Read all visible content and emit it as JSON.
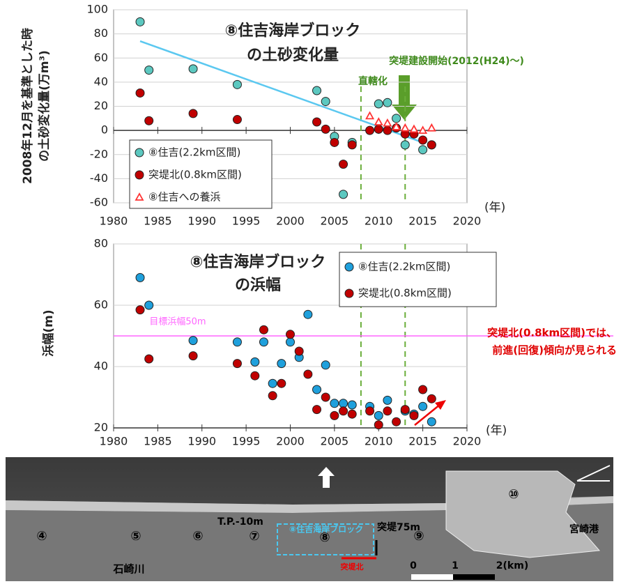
{
  "chart_data": [
    {
      "type": "scatter",
      "title": [
        "⑧住吉海岸ブロック",
        "の土砂変化量"
      ],
      "y_label": [
        "2008年12月を基準とした時",
        "の土砂変化量(万m³)"
      ],
      "x_unit": "(年)",
      "xlim": [
        1980,
        2020
      ],
      "xticks": [
        1980,
        1985,
        1990,
        1995,
        2000,
        2005,
        2010,
        2015,
        2020
      ],
      "ylim": [
        -60,
        100
      ],
      "yticks": [
        -60,
        -40,
        -20,
        0,
        20,
        40,
        60,
        80,
        100
      ],
      "grid": true,
      "legend": "lower-left",
      "series": [
        {
          "name": "⑧住吉(2.2km区間)",
          "color": "#5cc8c0",
          "marker": "circle",
          "x": [
            1983,
            1984,
            1989,
            1994,
            2003,
            2004,
            2005,
            2006,
            2007,
            2010,
            2011,
            2012,
            2013,
            2015,
            2016
          ],
          "values": [
            90,
            50,
            51,
            38,
            33,
            24,
            -5,
            -53,
            -10,
            22,
            23,
            10,
            -12,
            -16,
            -12
          ]
        },
        {
          "name": "突堤北(0.8km区間)",
          "color": "#c00000",
          "marker": "circle",
          "x": [
            1983,
            1984,
            1989,
            1994,
            2003,
            2004,
            2005,
            2006,
            2007,
            2009,
            2010,
            2011,
            2012,
            2013,
            2014,
            2015,
            2016
          ],
          "values": [
            31,
            8,
            14,
            9,
            7,
            1,
            -10,
            -28,
            -12,
            0,
            1,
            0,
            2,
            -3,
            -3,
            -8,
            -12
          ]
        },
        {
          "name": "⑧住吉への養浜",
          "color": "#ff3333",
          "marker": "triangle",
          "x": [
            2009,
            2010,
            2011,
            2012,
            2013,
            2014,
            2015,
            2016
          ],
          "values": [
            12,
            7,
            6,
            3,
            2,
            1,
            0,
            2
          ]
        }
      ],
      "trend": {
        "x": [
          1983,
          2015
        ],
        "values": [
          74,
          -10
        ],
        "color": "#5bc8f0"
      },
      "vlines": [
        {
          "x": 2008,
          "label": "直轄化"
        },
        {
          "x": 2013,
          "label": "突堤建設開始(2012(H24)〜)"
        }
      ]
    },
    {
      "type": "scatter",
      "title": [
        "⑧住吉海岸ブロック",
        "の浜幅"
      ],
      "y_label": [
        "浜幅(m)"
      ],
      "x_unit": "(年)",
      "xlim": [
        1980,
        2020
      ],
      "xticks": [
        1980,
        1985,
        1990,
        1995,
        2000,
        2005,
        2010,
        2015,
        2020
      ],
      "ylim": [
        20,
        80
      ],
      "yticks": [
        20,
        40,
        60,
        80
      ],
      "grid": true,
      "legend": "upper-right",
      "series": [
        {
          "name": "⑧住吉(2.2km区間)",
          "color": "#1fa0dc",
          "marker": "circle",
          "x": [
            1983,
            1984,
            1989,
            1994,
            1996,
            1997,
            1998,
            1999,
            2000,
            2001,
            2002,
            2003,
            2004,
            2005,
            2006,
            2007,
            2009,
            2010,
            2011,
            2013,
            2014,
            2015,
            2016
          ],
          "values": [
            69,
            60,
            48.5,
            48,
            41.5,
            48,
            34.5,
            41,
            48,
            43,
            57,
            32.5,
            40.5,
            28,
            28,
            27.5,
            27,
            24,
            29,
            25.5,
            24.5,
            27,
            22
          ]
        },
        {
          "name": "突堤北(0.8km区間)",
          "color": "#c00000",
          "marker": "circle",
          "x": [
            1983,
            1984,
            1989,
            1994,
            1996,
            1997,
            1998,
            1999,
            2000,
            2001,
            2002,
            2003,
            2004,
            2005,
            2006,
            2007,
            2009,
            2010,
            2011,
            2012,
            2013,
            2014,
            2015,
            2016
          ],
          "values": [
            58.5,
            42.5,
            43.5,
            41,
            37,
            52,
            30.5,
            34.5,
            50.5,
            45,
            37.5,
            26,
            30,
            24,
            25.5,
            24.5,
            25.5,
            21,
            25.5,
            22,
            26,
            24,
            32.5,
            29.5
          ]
        }
      ],
      "hline": {
        "y": 50,
        "label": "目標浜幅50m",
        "color": "#ff66ff"
      },
      "vlines": [
        {
          "x": 2008
        },
        {
          "x": 2013
        }
      ],
      "annotation": [
        "突堤北(0.8km区間)では、",
        "前進(回復)傾向が見られる"
      ]
    }
  ],
  "map": {
    "labels": [
      "⑧住吉海岸ブロック",
      "突堤75m",
      "⑩",
      "宮崎港",
      "T.P.-10m",
      "④",
      "⑤",
      "⑥",
      "⑦",
      "⑧",
      "⑨",
      "石崎川",
      "突堤北",
      "0",
      "1",
      "2(km)"
    ]
  }
}
